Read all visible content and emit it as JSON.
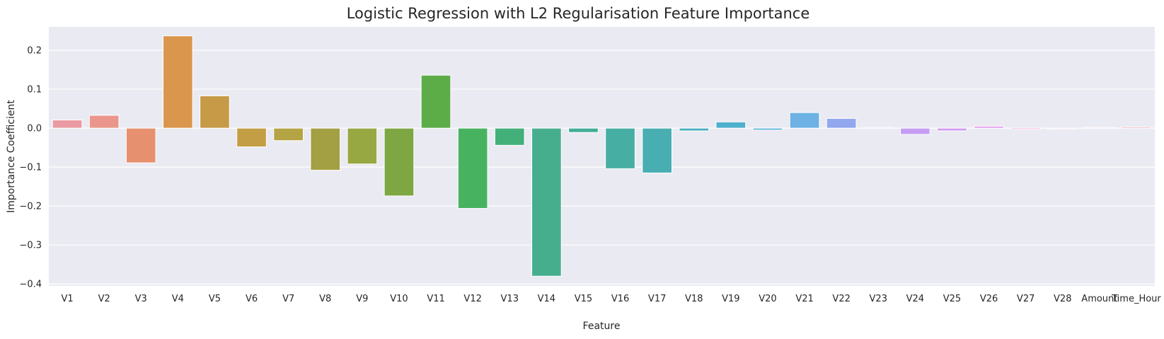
{
  "chart_data": {
    "type": "bar",
    "title": "Logistic Regression with L2 Regularisation Feature Importance",
    "xlabel": "Feature",
    "ylabel": "Importance Coefficient",
    "ylim": [
      -0.405,
      0.26
    ],
    "yticks": [
      -0.4,
      -0.3,
      -0.2,
      -0.1,
      0.0,
      0.1,
      0.2
    ],
    "ytick_labels": [
      "−0.4",
      "−0.3",
      "−0.2",
      "−0.1",
      "0.0",
      "0.1",
      "0.2"
    ],
    "grid": true,
    "categories": [
      "V1",
      "V2",
      "V3",
      "V4",
      "V5",
      "V6",
      "V7",
      "V8",
      "V9",
      "V10",
      "V11",
      "V12",
      "V13",
      "V14",
      "V15",
      "V16",
      "V17",
      "V18",
      "V19",
      "V20",
      "V21",
      "V22",
      "V23",
      "V24",
      "V25",
      "V26",
      "V27",
      "V28",
      "Amount",
      "Time_Hour"
    ],
    "values": [
      0.021,
      0.033,
      -0.089,
      0.237,
      0.083,
      -0.048,
      -0.032,
      -0.108,
      -0.092,
      -0.174,
      0.136,
      -0.206,
      -0.044,
      -0.38,
      -0.011,
      -0.104,
      -0.115,
      -0.007,
      0.016,
      -0.005,
      0.04,
      0.025,
      0.002,
      -0.016,
      -0.007,
      0.005,
      -0.003,
      -0.002,
      0.002,
      0.003
    ],
    "colors": [
      "#ea9aa2",
      "#ea968c",
      "#e6906f",
      "#db964d",
      "#c69a47",
      "#c49e45",
      "#b5a444",
      "#a3a043",
      "#97a843",
      "#7ea744",
      "#5cad47",
      "#47b360",
      "#43af79",
      "#47ae8d",
      "#44ad97",
      "#47aea3",
      "#48aeb1",
      "#49adbf",
      "#4eb0cd",
      "#5ab2d8",
      "#6eb1e4",
      "#93a7ee",
      "#b39ef0",
      "#c59ef4",
      "#d19bf3",
      "#e096ea",
      "#ea94dd",
      "#ef96d1",
      "#ee97c2",
      "#eb97b4"
    ]
  }
}
